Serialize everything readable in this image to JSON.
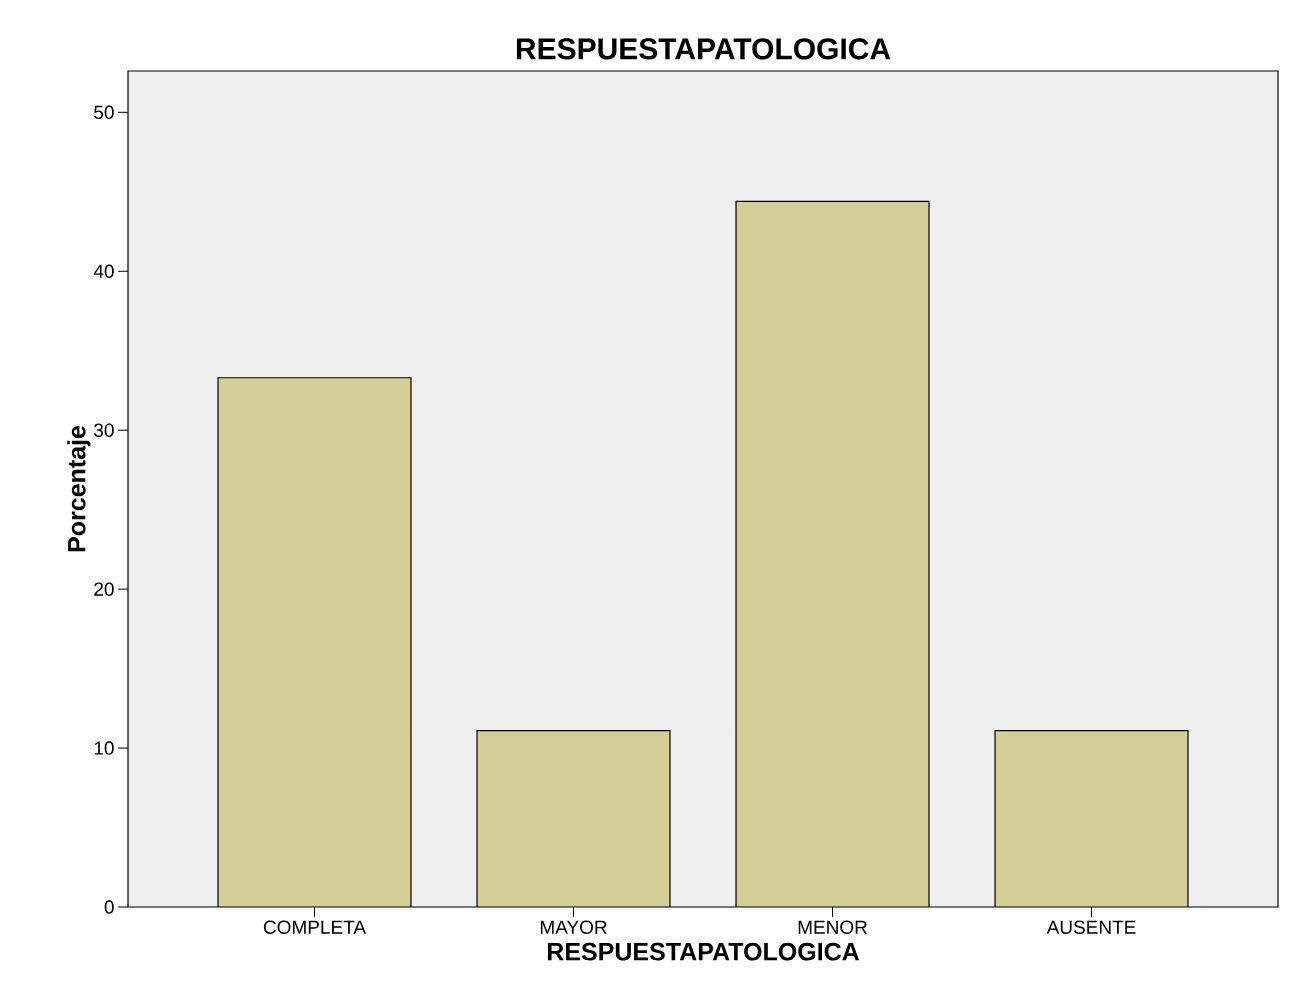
{
  "chart_data": {
    "type": "bar",
    "title": "RESPUESTAPATOLOGICA",
    "xlabel": "RESPUESTAPATOLOGICA",
    "ylabel": "Porcentaje",
    "categories": [
      "COMPLETA",
      "MAYOR",
      "MENOR",
      "AUSENTE"
    ],
    "values": [
      33.3,
      11.1,
      44.4,
      11.1
    ],
    "color": "#d3cd96",
    "ylim": [
      0,
      52.6
    ],
    "yticks": [
      0,
      10,
      20,
      30,
      40,
      50
    ]
  }
}
